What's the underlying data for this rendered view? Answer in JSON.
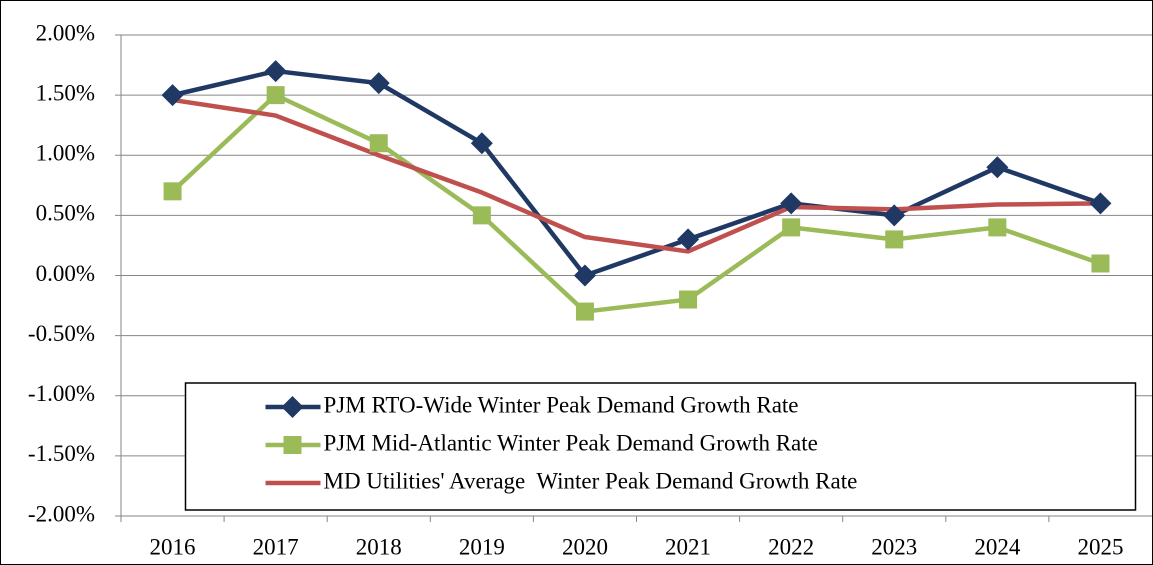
{
  "chart_data": {
    "type": "line",
    "categories": [
      "2016",
      "2017",
      "2018",
      "2019",
      "2020",
      "2021",
      "2022",
      "2023",
      "2024",
      "2025"
    ],
    "series": [
      {
        "name": "PJM RTO-Wide Winter Peak Demand Growth Rate",
        "color": "#1f3864",
        "marker": "diamond",
        "values": [
          1.5,
          1.7,
          1.6,
          1.1,
          0.0,
          0.3,
          0.6,
          0.5,
          0.9,
          0.6
        ]
      },
      {
        "name": "PJM Mid-Atlantic Winter Peak Demand Growth Rate",
        "color": "#9bbb59",
        "marker": "square",
        "values": [
          0.7,
          1.5,
          1.1,
          0.5,
          -0.3,
          -0.2,
          0.4,
          0.3,
          0.4,
          0.1
        ]
      },
      {
        "name": "MD Utilities' Average  Winter Peak Demand Growth Rate",
        "color": "#c0504d",
        "marker": "none",
        "values": [
          1.46,
          1.33,
          1.0,
          0.69,
          0.32,
          0.2,
          0.57,
          0.55,
          0.59,
          0.6
        ]
      }
    ],
    "ylim": [
      -2,
      2
    ],
    "yticks": [
      {
        "value": -2,
        "label": "-2.00%"
      },
      {
        "value": -1.5,
        "label": "-1.50%"
      },
      {
        "value": -1,
        "label": "-1.00%"
      },
      {
        "value": -0.5,
        "label": "-0.50%"
      },
      {
        "value": 0,
        "label": "0.00%"
      },
      {
        "value": 0.5,
        "label": "0.50%"
      },
      {
        "value": 1,
        "label": "1.00%"
      },
      {
        "value": 1.5,
        "label": "1.50%"
      },
      {
        "value": 2,
        "label": "2.00%"
      }
    ],
    "grid": true,
    "legend": "lower center"
  }
}
